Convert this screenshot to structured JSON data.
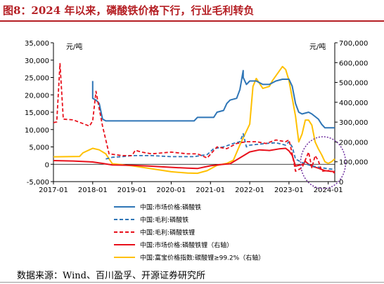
{
  "header": {
    "title": "图8：2024 年以来，磷酸铁价格下行，行业毛利转负"
  },
  "footer": {
    "source": "数据来源：Wind、百川盈孚、开源证券研究所"
  },
  "colors": {
    "title_red": "#b51f24",
    "blue": "#2e75b6",
    "red": "#e8101b",
    "yellow": "#ffc000",
    "circle": "#7030a0"
  },
  "chart_data": {
    "type": "line",
    "title": "",
    "left_axis": {
      "unit": "元/吨",
      "ticks": [
        "35,000",
        "30,000",
        "25,000",
        "20,000",
        "15,000",
        "10,000",
        "5,000",
        "0",
        "-5,000"
      ],
      "ylim": [
        -5000,
        35000
      ]
    },
    "right_axis": {
      "unit": "元/吨",
      "ticks": [
        "700,000",
        "600,000",
        "500,000",
        "400,000",
        "300,000",
        "200,000",
        "100,000",
        "0"
      ],
      "ylim": [
        0,
        700000
      ]
    },
    "x_ticks": [
      "2017-01",
      "2018-01",
      "2019-01",
      "2020-01",
      "2021-01",
      "2022-01",
      "2023-01",
      "2024-01"
    ],
    "xlim": [
      "2017-01",
      "2024-03"
    ],
    "annotation": "dotted circle highlighting 2023-07 to 2024-03",
    "series": [
      {
        "name": "中国:市场价格:磷酸铁",
        "axis": "left",
        "style": "solid",
        "color": "#2e75b6",
        "points": [
          [
            "2018-01",
            24000
          ],
          [
            "2018-01",
            22000
          ],
          [
            "2018-01",
            19000
          ],
          [
            "2018-02",
            18500
          ],
          [
            "2018-03",
            17500
          ],
          [
            "2018-04",
            13000
          ],
          [
            "2018-05",
            12500
          ],
          [
            "2019-01",
            12500
          ],
          [
            "2019-09",
            12500
          ],
          [
            "2020-01",
            12500
          ],
          [
            "2020-08",
            12500
          ],
          [
            "2020-09",
            13500
          ],
          [
            "2020-11",
            13500
          ],
          [
            "2021-02",
            13500
          ],
          [
            "2021-03",
            15000
          ],
          [
            "2021-05",
            15500
          ],
          [
            "2021-06",
            17500
          ],
          [
            "2021-07",
            18500
          ],
          [
            "2021-09",
            19000
          ],
          [
            "2021-10",
            21500
          ],
          [
            "2021-11",
            27000
          ],
          [
            "2021-11",
            25000
          ],
          [
            "2021-12",
            23000
          ],
          [
            "2022-01",
            24000
          ],
          [
            "2022-03",
            24000
          ],
          [
            "2022-05",
            23000
          ],
          [
            "2022-07",
            23000
          ],
          [
            "2022-09",
            24000
          ],
          [
            "2022-11",
            24500
          ],
          [
            "2023-01",
            24500
          ],
          [
            "2023-02",
            22500
          ],
          [
            "2023-03",
            17500
          ],
          [
            "2023-04",
            15000
          ],
          [
            "2023-05",
            14500
          ],
          [
            "2023-07",
            15000
          ],
          [
            "2023-08",
            14500
          ],
          [
            "2023-10",
            13000
          ],
          [
            "2023-11",
            11500
          ],
          [
            "2023-12",
            10500
          ],
          [
            "2024-03",
            10500
          ]
        ]
      },
      {
        "name": "中国:毛利:磷酸铁",
        "axis": "left",
        "style": "dashed",
        "color": "#2e75b6",
        "points": [
          [
            "2018-05",
            1500
          ],
          [
            "2018-07",
            2000
          ],
          [
            "2018-10",
            2200
          ],
          [
            "2019-01",
            2500
          ],
          [
            "2019-07",
            2500
          ],
          [
            "2020-01",
            2200
          ],
          [
            "2020-08",
            2200
          ],
          [
            "2020-12",
            2800
          ],
          [
            "2021-02",
            4500
          ],
          [
            "2021-05",
            5000
          ],
          [
            "2021-08",
            6000
          ],
          [
            "2021-10",
            6500
          ],
          [
            "2021-11",
            8800
          ],
          [
            "2021-12",
            5000
          ],
          [
            "2022-01",
            5500
          ],
          [
            "2022-06",
            6000
          ],
          [
            "2022-09",
            6200
          ],
          [
            "2022-12",
            5500
          ],
          [
            "2023-01",
            6500
          ],
          [
            "2023-02",
            5000
          ],
          [
            "2023-03",
            1500
          ],
          [
            "2023-05",
            500
          ],
          [
            "2023-08",
            -500
          ],
          [
            "2023-11",
            -1000
          ],
          [
            "2024-01",
            -1300
          ],
          [
            "2024-03",
            -1500
          ]
        ]
      },
      {
        "name": "中国:毛利:磷酸铁锂",
        "axis": "left",
        "style": "dashed",
        "color": "#e8101b",
        "points": [
          [
            "2017-01",
            12000
          ],
          [
            "2017-02",
            12200
          ],
          [
            "2017-03",
            29000
          ],
          [
            "2017-04",
            13000
          ],
          [
            "2017-07",
            12800
          ],
          [
            "2017-12",
            11000
          ],
          [
            "2018-01",
            12500
          ],
          [
            "2018-02",
            21000
          ],
          [
            "2018-03",
            16000
          ],
          [
            "2018-04",
            11000
          ],
          [
            "2018-06",
            3000
          ],
          [
            "2018-10",
            2500
          ],
          [
            "2019-01",
            2500
          ],
          [
            "2019-02",
            4000
          ],
          [
            "2019-04",
            3500
          ],
          [
            "2019-07",
            3000
          ],
          [
            "2020-01",
            3500
          ],
          [
            "2020-06",
            3000
          ],
          [
            "2020-09",
            3000
          ],
          [
            "2020-12",
            1800
          ],
          [
            "2021-03",
            5000
          ],
          [
            "2021-06",
            4500
          ],
          [
            "2021-09",
            6000
          ],
          [
            "2021-12",
            6500
          ],
          [
            "2022-03",
            6500
          ],
          [
            "2022-06",
            6000
          ],
          [
            "2022-09",
            7000
          ],
          [
            "2022-12",
            6500
          ],
          [
            "2023-01",
            7000
          ],
          [
            "2023-02",
            3000
          ],
          [
            "2023-03",
            -2000
          ],
          [
            "2023-05",
            -1000
          ],
          [
            "2023-07",
            3500
          ],
          [
            "2023-08",
            -1000
          ],
          [
            "2023-09",
            2500
          ],
          [
            "2023-10",
            1000
          ],
          [
            "2023-11",
            -2000
          ],
          [
            "2024-01",
            -1800
          ],
          [
            "2024-03",
            -2500
          ]
        ]
      },
      {
        "name": "中国:市场价格:磷酸铁锂（右轴）",
        "axis": "right",
        "style": "solid",
        "color": "#e8101b",
        "points": [
          [
            "2017-01",
            106000
          ],
          [
            "2017-07",
            104000
          ],
          [
            "2018-01",
            99000
          ],
          [
            "2018-04",
            92000
          ],
          [
            "2018-07",
            84000
          ],
          [
            "2019-01",
            82000
          ],
          [
            "2019-06",
            79000
          ],
          [
            "2020-01",
            72000
          ],
          [
            "2020-06",
            68000
          ],
          [
            "2020-09",
            66000
          ],
          [
            "2021-01",
            80000
          ],
          [
            "2021-04",
            86000
          ],
          [
            "2021-07",
            90000
          ],
          [
            "2021-10",
            120000
          ],
          [
            "2022-01",
            150000
          ],
          [
            "2022-04",
            160000
          ],
          [
            "2022-07",
            157000
          ],
          [
            "2022-10",
            165000
          ],
          [
            "2022-12",
            168000
          ],
          [
            "2023-01",
            155000
          ],
          [
            "2023-02",
            132000
          ],
          [
            "2023-03",
            78000
          ],
          [
            "2023-05",
            86000
          ],
          [
            "2023-06",
            102000
          ],
          [
            "2023-07",
            88000
          ],
          [
            "2023-08",
            78000
          ],
          [
            "2023-10",
            68000
          ],
          [
            "2023-12",
            55000
          ],
          [
            "2024-03",
            50000
          ]
        ]
      },
      {
        "name": "中国:富宝价格指数:碳酸锂≥99.2%（右轴）",
        "axis": "right",
        "style": "solid",
        "color": "#ffc000",
        "points": [
          [
            "2017-01",
            125000
          ],
          [
            "2017-09",
            127000
          ],
          [
            "2017-10",
            145000
          ],
          [
            "2018-01",
            168000
          ],
          [
            "2018-03",
            160000
          ],
          [
            "2018-05",
            140000
          ],
          [
            "2018-07",
            90000
          ],
          [
            "2019-01",
            80000
          ],
          [
            "2019-07",
            65000
          ],
          [
            "2020-01",
            50000
          ],
          [
            "2020-06",
            43000
          ],
          [
            "2020-09",
            42000
          ],
          [
            "2020-12",
            55000
          ],
          [
            "2021-03",
            82000
          ],
          [
            "2021-06",
            92000
          ],
          [
            "2021-08",
            108000
          ],
          [
            "2021-10",
            185000
          ],
          [
            "2022-01",
            290000
          ],
          [
            "2022-02",
            480000
          ],
          [
            "2022-03",
            520000
          ],
          [
            "2022-05",
            470000
          ],
          [
            "2022-07",
            480000
          ],
          [
            "2022-08",
            510000
          ],
          [
            "2022-11",
            580000
          ],
          [
            "2022-12",
            565000
          ],
          [
            "2023-01",
            510000
          ],
          [
            "2023-03",
            330000
          ],
          [
            "2023-04",
            200000
          ],
          [
            "2023-05",
            240000
          ],
          [
            "2023-06",
            310000
          ],
          [
            "2023-07",
            310000
          ],
          [
            "2023-08",
            285000
          ],
          [
            "2023-09",
            200000
          ],
          [
            "2023-10",
            165000
          ],
          [
            "2023-11",
            135000
          ],
          [
            "2023-12",
            100000
          ],
          [
            "2024-01",
            92000
          ],
          [
            "2024-02",
            100000
          ],
          [
            "2024-03",
            115000
          ]
        ]
      }
    ]
  }
}
